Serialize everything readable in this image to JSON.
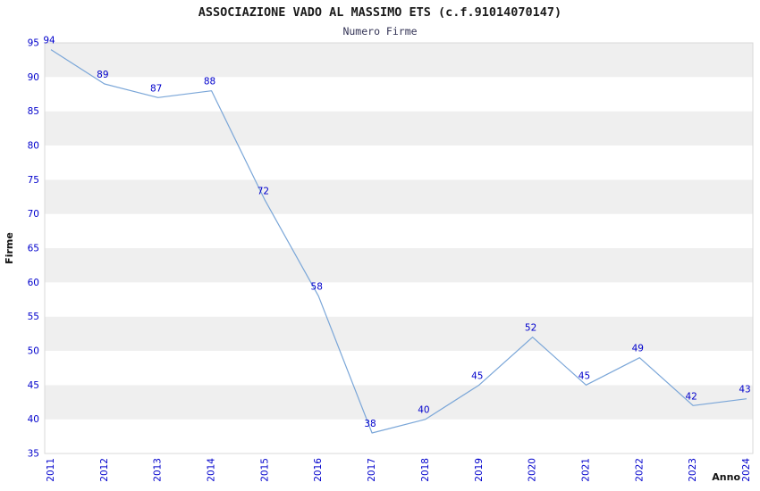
{
  "title": "ASSOCIAZIONE VADO AL MASSIMO ETS (c.f.91014070147)",
  "subtitle": "Numero Firme",
  "chart_data": {
    "type": "line",
    "title": "ASSOCIAZIONE VADO AL MASSIMO ETS (c.f.91014070147)",
    "subtitle": "Numero Firme",
    "categories": [
      "2011",
      "2012",
      "2013",
      "2014",
      "2015",
      "2016",
      "2017",
      "2018",
      "2019",
      "2020",
      "2021",
      "2022",
      "2023",
      "2024"
    ],
    "values": [
      94,
      89,
      87,
      88,
      72,
      58,
      38,
      40,
      45,
      52,
      45,
      49,
      42,
      43
    ],
    "xlabel": "Anno",
    "ylabel": "Firme",
    "ylim": [
      35,
      95
    ],
    "ytick_step": 5,
    "grid": "horizontal-bands",
    "legend": "none",
    "point_labels_visible": true,
    "colors": {
      "line": "#7aa6d8",
      "tick_label": "#0000cc",
      "point_label": "#0000cc",
      "band_light": "#ffffff",
      "band_dark": "#efefef",
      "frame": "#d9d9d9",
      "axis_title": "#111111",
      "title": "#1a1a1a",
      "subtitle": "#333355"
    }
  }
}
